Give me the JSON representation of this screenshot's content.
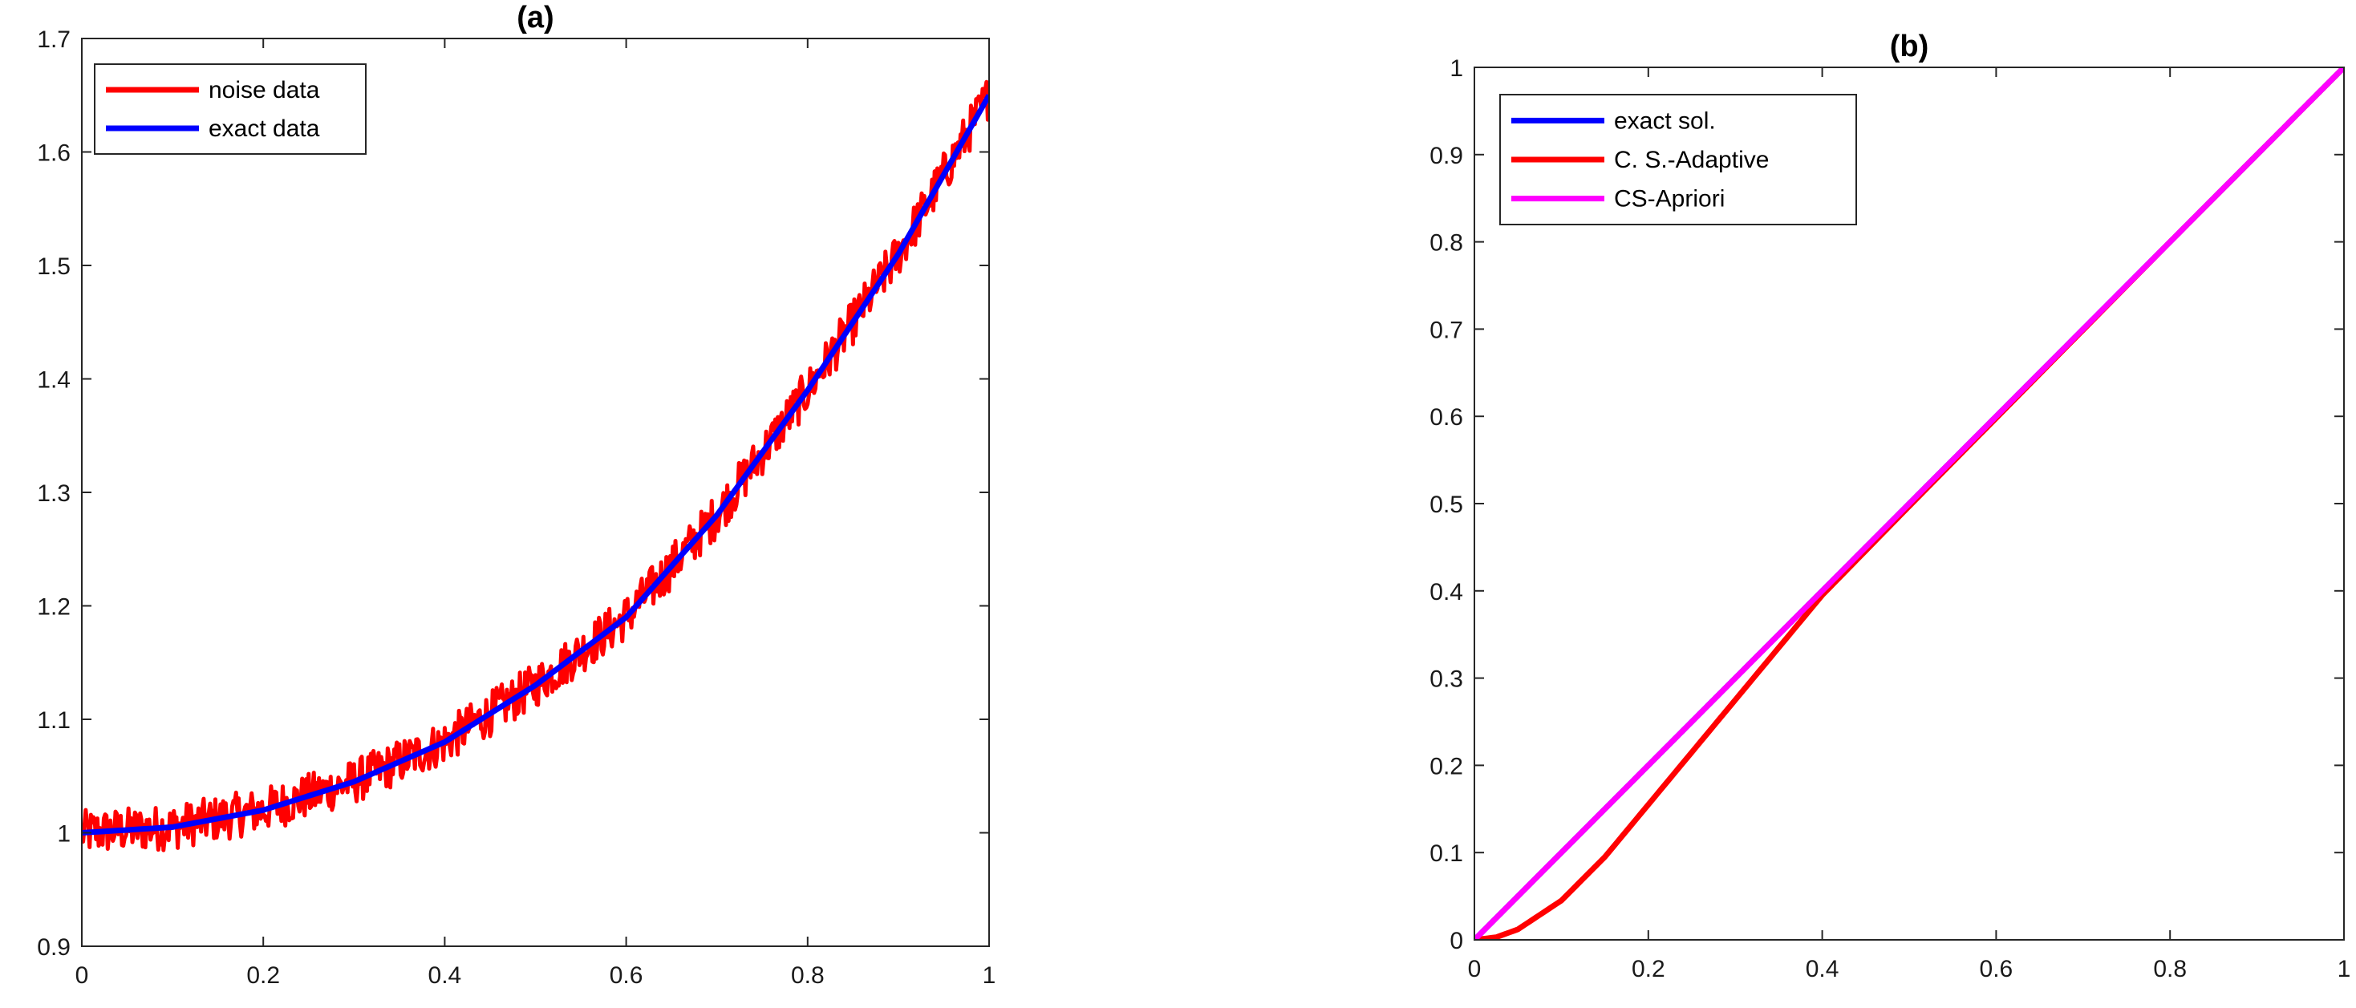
{
  "chart_data": [
    {
      "type": "line",
      "title": "(a)",
      "xlim": [
        0,
        1
      ],
      "ylim": [
        0.9,
        1.7
      ],
      "xticks": [
        "0",
        "0.2",
        "0.4",
        "0.6",
        "0.8",
        "1"
      ],
      "yticks": [
        "0.9",
        "1",
        "1.1",
        "1.2",
        "1.3",
        "1.4",
        "1.5",
        "1.6",
        "1.7"
      ],
      "grid": false,
      "legend_position": "top-left",
      "series": [
        {
          "name": "noise data",
          "color": "#ff0000",
          "style": "noisy",
          "x": [
            0,
            0.1,
            0.2,
            0.3,
            0.4,
            0.5,
            0.6,
            0.7,
            0.8,
            0.9,
            1.0
          ],
          "y": [
            1.0,
            1.005,
            1.02,
            1.045,
            1.08,
            1.13,
            1.19,
            1.28,
            1.39,
            1.51,
            1.65
          ],
          "noise_amplitude": 0.02
        },
        {
          "name": "exact data",
          "color": "#0000ff",
          "x": [
            0,
            0.1,
            0.2,
            0.3,
            0.4,
            0.5,
            0.6,
            0.7,
            0.8,
            0.9,
            1.0
          ],
          "y": [
            1.0,
            1.005,
            1.02,
            1.045,
            1.08,
            1.13,
            1.19,
            1.28,
            1.39,
            1.51,
            1.65
          ]
        }
      ]
    },
    {
      "type": "line",
      "title": "(b)",
      "xlim": [
        0,
        1
      ],
      "ylim": [
        0,
        1
      ],
      "xticks": [
        "0",
        "0.2",
        "0.4",
        "0.6",
        "0.8",
        "1"
      ],
      "yticks": [
        "0",
        "0.1",
        "0.2",
        "0.3",
        "0.4",
        "0.5",
        "0.6",
        "0.7",
        "0.8",
        "0.9",
        "1"
      ],
      "grid": false,
      "legend_position": "top-left",
      "series": [
        {
          "name": "exact sol.",
          "color": "#0000ff",
          "x": [
            0,
            0.2,
            0.4,
            0.6,
            0.8,
            1.0
          ],
          "y": [
            0,
            0.2,
            0.4,
            0.6,
            0.8,
            1.0
          ]
        },
        {
          "name": " C. S.-Adaptive",
          "color": "#ff0000",
          "x": [
            0,
            0.025,
            0.05,
            0.1,
            0.15,
            0.2,
            0.25,
            0.3,
            0.35,
            0.4,
            0.5,
            0.6,
            0.8,
            1.0
          ],
          "y": [
            0,
            0.003,
            0.012,
            0.045,
            0.095,
            0.155,
            0.215,
            0.275,
            0.335,
            0.395,
            0.497,
            0.598,
            0.8,
            1.0
          ]
        },
        {
          "name": "CS-Apriori",
          "color": "#ff00ff",
          "x": [
            0,
            0.2,
            0.4,
            0.6,
            0.8,
            1.0
          ],
          "y": [
            0,
            0.2,
            0.4,
            0.6,
            0.8,
            1.0
          ]
        }
      ]
    }
  ]
}
